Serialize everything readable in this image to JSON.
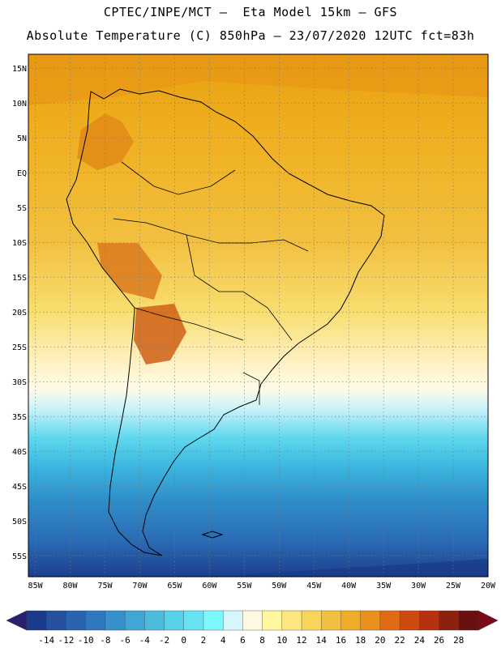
{
  "header": {
    "line1": "CPTEC/INPE/MCT –  Eta Model 15km – GFS",
    "line2": "Absolute Temperature (C) 850hPa – 23/07/2020 12UTC fct=83h"
  },
  "map": {
    "lat_labels": [
      "15N",
      "10N",
      "5N",
      "EQ",
      "5S",
      "10S",
      "15S",
      "20S",
      "25S",
      "30S",
      "35S",
      "40S",
      "45S",
      "50S",
      "55S"
    ],
    "lat_values": [
      15,
      10,
      5,
      0,
      -5,
      -10,
      -15,
      -20,
      -25,
      -30,
      -35,
      -40,
      -45,
      -50,
      -55
    ],
    "lon_labels": [
      "85W",
      "80W",
      "75W",
      "70W",
      "65W",
      "60W",
      "55W",
      "50W",
      "45W",
      "40W",
      "35W",
      "30W",
      "25W",
      "20W"
    ],
    "lon_values": [
      -85,
      -80,
      -75,
      -70,
      -65,
      -60,
      -55,
      -50,
      -45,
      -40,
      -35,
      -30,
      -25,
      -20
    ],
    "lat_range": [
      -58,
      17
    ],
    "lon_range": [
      -86,
      -20
    ],
    "gridlines": true,
    "temperature_bands": [
      {
        "lat": 17,
        "c": "#e8a010"
      },
      {
        "lat": 5,
        "c": "#f0b020"
      },
      {
        "lat": -10,
        "c": "#f2c040"
      },
      {
        "lat": -20,
        "c": "#f8de70"
      },
      {
        "lat": -27,
        "c": "#fff0c0"
      },
      {
        "lat": -31,
        "c": "#fffbe8"
      },
      {
        "lat": -34,
        "c": "#c8f2fb"
      },
      {
        "lat": -38,
        "c": "#60d8ee"
      },
      {
        "lat": -42,
        "c": "#3db8e0"
      },
      {
        "lat": -47,
        "c": "#2f8ec9"
      },
      {
        "lat": -53,
        "c": "#2a6ab4"
      },
      {
        "lat": -58,
        "c": "#1c3e8c"
      }
    ]
  },
  "colorbar": {
    "labels": [
      "-14",
      "-12",
      "-10",
      "-8",
      "-6",
      "-4",
      "-2",
      "0",
      "2",
      "4",
      "6",
      "8",
      "10",
      "12",
      "14",
      "16",
      "18",
      "20",
      "22",
      "24",
      "26",
      "28"
    ],
    "colors": [
      "#1c3a8c",
      "#24509e",
      "#2a64b0",
      "#2f78c0",
      "#3690cc",
      "#40a6d6",
      "#4cbcde",
      "#58d0e8",
      "#66e2f2",
      "#7cf8fc",
      "#d6f6fc",
      "#fff8e0",
      "#fff6a0",
      "#fde780",
      "#f9d45a",
      "#f2c040",
      "#eeac28",
      "#e88f1c",
      "#e06b14",
      "#cf4a10",
      "#b43210",
      "#8e2010",
      "#6a1010"
    ],
    "arrow_left": "#2a2070",
    "arrow_right": "#7a0a1a"
  }
}
